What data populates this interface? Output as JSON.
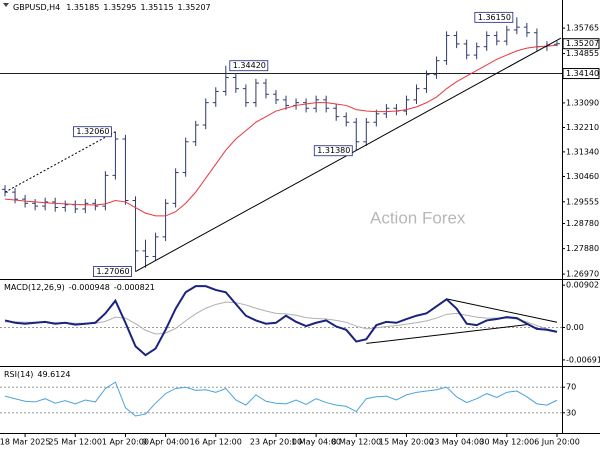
{
  "chart_data": [
    {
      "type": "ohlc",
      "title": "GBPUSD,H4",
      "watermark": "Action Forex",
      "color": "#2e3a6b",
      "categories": [
        null,
        null,
        "18 Mar 2025",
        null,
        null,
        null,
        null,
        "25 Mar 12:00",
        null,
        null,
        null,
        null,
        "1 Apr 20:00",
        null,
        null,
        null,
        "9 Apr 04:00",
        null,
        null,
        null,
        null,
        "16 Apr 12:00",
        null,
        null,
        null,
        null,
        null,
        "23 Apr 20:00",
        null,
        null,
        null,
        "1 May 04:00",
        null,
        null,
        null,
        "8 May 12:00",
        null,
        null,
        null,
        null,
        "15 May 20:00",
        null,
        null,
        null,
        null,
        "23 May 04:00",
        null,
        null,
        null,
        null,
        "30 May 12:00",
        null,
        null,
        null,
        null,
        "6 Jun 20:00"
      ],
      "open": [
        1.3,
        1.299,
        1.2965,
        1.295,
        1.294,
        1.2955,
        1.2935,
        1.2945,
        1.293,
        1.295,
        1.294,
        1.305,
        1.318,
        1.296,
        1.278,
        1.276,
        1.283,
        1.295,
        1.306,
        1.317,
        1.323,
        1.331,
        1.335,
        1.34,
        1.336,
        1.331,
        1.338,
        1.334,
        1.332,
        1.33,
        1.331,
        1.329,
        1.332,
        1.329,
        1.326,
        1.324,
        1.317,
        1.324,
        1.327,
        1.329,
        1.328,
        1.332,
        1.336,
        1.341,
        1.346,
        1.355,
        1.352,
        1.348,
        1.351,
        1.355,
        1.353,
        1.357,
        1.358,
        1.356,
        1.351,
        1.35185
      ],
      "high": [
        1.3015,
        1.3005,
        1.298,
        1.2965,
        1.297,
        1.297,
        1.296,
        1.296,
        1.2965,
        1.2965,
        1.3065,
        1.3206,
        1.3195,
        1.2975,
        1.282,
        1.2845,
        1.2965,
        1.3075,
        1.3185,
        1.3245,
        1.3325,
        1.3365,
        1.3442,
        1.3415,
        1.3375,
        1.3395,
        1.3395,
        1.3355,
        1.3335,
        1.3325,
        1.3325,
        1.3335,
        1.3335,
        1.3305,
        1.3275,
        1.3255,
        1.3255,
        1.3285,
        1.3305,
        1.3305,
        1.3335,
        1.3375,
        1.3425,
        1.3475,
        1.3565,
        1.3565,
        1.3535,
        1.3525,
        1.3565,
        1.3565,
        1.3585,
        1.3615,
        1.3595,
        1.3575,
        1.353,
        1.35295
      ],
      "low": [
        1.2975,
        1.295,
        1.2935,
        1.2925,
        1.2925,
        1.292,
        1.292,
        1.2915,
        1.2915,
        1.2925,
        1.2925,
        1.3035,
        1.2945,
        1.2706,
        1.272,
        1.2745,
        1.2815,
        1.2935,
        1.3045,
        1.3155,
        1.3215,
        1.3295,
        1.3335,
        1.3345,
        1.3295,
        1.3295,
        1.3325,
        1.3305,
        1.3285,
        1.3285,
        1.3275,
        1.3275,
        1.3275,
        1.3245,
        1.3225,
        1.3138,
        1.3155,
        1.3225,
        1.3255,
        1.3265,
        1.3265,
        1.3305,
        1.3345,
        1.3395,
        1.3445,
        1.3505,
        1.3465,
        1.3465,
        1.3495,
        1.3515,
        1.3515,
        1.3555,
        1.3545,
        1.3495,
        1.3495,
        1.35115
      ],
      "close": [
        1.299,
        1.2965,
        1.295,
        1.294,
        1.2955,
        1.2935,
        1.2945,
        1.293,
        1.295,
        1.294,
        1.305,
        1.318,
        1.296,
        1.278,
        1.276,
        1.283,
        1.295,
        1.306,
        1.317,
        1.323,
        1.331,
        1.335,
        1.34,
        1.336,
        1.331,
        1.338,
        1.334,
        1.332,
        1.33,
        1.331,
        1.329,
        1.332,
        1.329,
        1.326,
        1.324,
        1.317,
        1.324,
        1.327,
        1.329,
        1.328,
        1.332,
        1.336,
        1.341,
        1.346,
        1.355,
        1.352,
        1.348,
        1.351,
        1.355,
        1.353,
        1.357,
        1.358,
        1.356,
        1.351,
        1.3515,
        1.35207
      ],
      "overlays": [
        {
          "color": "#e8383d",
          "values": [
            1.2965,
            1.2962,
            1.2958,
            1.2955,
            1.2952,
            1.295,
            1.2948,
            1.2946,
            1.2945,
            1.2944,
            1.2948,
            1.296,
            1.2955,
            1.2935,
            1.2915,
            1.2905,
            1.2905,
            1.292,
            1.295,
            1.299,
            1.304,
            1.309,
            1.314,
            1.318,
            1.321,
            1.324,
            1.326,
            1.328,
            1.329,
            1.33,
            1.3305,
            1.331,
            1.331,
            1.3305,
            1.33,
            1.3285,
            1.328,
            1.3278,
            1.3278,
            1.328,
            1.3285,
            1.3295,
            1.331,
            1.333,
            1.336,
            1.3385,
            1.3405,
            1.3425,
            1.3445,
            1.3465,
            1.348,
            1.3495,
            1.3505,
            1.351,
            1.3512,
            1.3515
          ]
        }
      ],
      "trendlines": [
        {
          "x": [
            13,
            55.4
          ],
          "y": [
            1.2706,
            1.3541
          ],
          "color": "#000000",
          "style": "solid"
        },
        {
          "x": [
            0,
            11
          ],
          "y": [
            1.299,
            1.3206
          ],
          "color": "#000000",
          "style": "dotted"
        }
      ],
      "hline": {
        "value": 1.3414,
        "label": "1.34140"
      },
      "annotations": [
        {
          "index": 11,
          "value": 1.3206,
          "label": "1.32060"
        },
        {
          "index": 13,
          "value": 1.2706,
          "label": "1.27060"
        },
        {
          "index": 22,
          "value": 1.3442,
          "label": "1.34420"
        },
        {
          "index": 35,
          "value": 1.3138,
          "label": "1.31380"
        },
        {
          "index": 51,
          "value": 1.3615,
          "label": "1.36150"
        }
      ],
      "ylim": [
        1.2683,
        1.3677
      ],
      "yticks": [
        1.35765,
        1.34855,
        {
          "value": 1.3309,
          "label": "1.33090"
        },
        {
          "value": 1.3221,
          "label": "1.32210"
        },
        {
          "value": 1.3134,
          "label": "1.31340"
        },
        {
          "value": 1.3046,
          "label": "1.30460"
        },
        1.29555,
        {
          "value": 1.2878,
          "label": "1.28780"
        },
        {
          "value": 1.2788,
          "label": "1.27880"
        },
        {
          "value": 1.2697,
          "label": "1.26970"
        }
      ],
      "grid": false
    },
    {
      "type": "line",
      "title": "MACD(12,26,9)",
      "series": [
        {
          "color": "#1a237e",
          "width": 2,
          "values": [
            0.0015,
            0.001,
            0.0008,
            0.001,
            0.0012,
            0.0008,
            0.001,
            0.0006,
            0.0008,
            0.001,
            0.003,
            0.0057,
            0.001,
            -0.004,
            -0.0059,
            -0.0045,
            -0.0005,
            0.004,
            0.0075,
            0.0088,
            0.0088,
            0.008,
            0.0075,
            0.005,
            0.0025,
            0.0015,
            0.0008,
            0.001,
            0.0025,
            0.0012,
            0.0003,
            0.001,
            0.0015,
            0.0002,
            -0.0005,
            -0.003,
            -0.0025,
            0.0005,
            0.0012,
            0.001,
            0.0018,
            0.0025,
            0.003,
            0.0045,
            0.006,
            0.004,
            0.0008,
            0.0005,
            0.0015,
            0.0018,
            0.0022,
            0.002,
            0.0008,
            -0.0003,
            -0.0005,
            -0.000948
          ]
        },
        {
          "color": "#b0b0b0",
          "width": 1,
          "values": [
            0.0012,
            0.0012,
            0.0011,
            0.0011,
            0.0011,
            0.001,
            0.001,
            0.0009,
            0.0009,
            0.0009,
            0.0013,
            0.0022,
            0.002,
            0.0008,
            -0.0006,
            -0.0014,
            -0.0012,
            -0.0002,
            0.0014,
            0.0029,
            0.0041,
            0.0049,
            0.0054,
            0.0053,
            0.0048,
            0.0041,
            0.0035,
            0.003,
            0.0029,
            0.0026,
            0.0021,
            0.0019,
            0.0018,
            0.0015,
            0.0011,
            0.0003,
            -0.0003,
            -0.0001,
            0.0002,
            0.0004,
            0.0007,
            0.001,
            0.0014,
            0.002,
            0.0028,
            0.003,
            0.0026,
            0.0022,
            0.002,
            0.002,
            0.002,
            0.0018,
            0.0012,
            0.0004,
            -0.0003,
            -0.000821
          ]
        }
      ],
      "trendlines": [
        {
          "x": [
            36,
            52
          ],
          "y": [
            -0.0034,
            0.0006
          ],
          "color": "#000000",
          "style": "solid"
        },
        {
          "x": [
            44,
            55
          ],
          "y": [
            0.0061,
            0.0011
          ],
          "color": "#000000",
          "style": "solid"
        }
      ],
      "levels": [
        0
      ],
      "ylim": [
        -0.008,
        0.0099
      ],
      "yticks": [
        0.00902,
        {
          "value": 0,
          "label": "0.00"
        },
        -0.006915
      ]
    },
    {
      "type": "line",
      "title": "RSI(14)",
      "series": [
        {
          "color": "#4aa3df",
          "width": 1,
          "values": [
            56,
            52,
            48,
            47,
            52,
            45,
            49,
            44,
            50,
            47,
            68,
            78,
            38,
            25,
            28,
            45,
            60,
            68,
            70,
            65,
            66,
            62,
            68,
            50,
            42,
            58,
            48,
            45,
            44,
            50,
            43,
            52,
            46,
            42,
            40,
            32,
            52,
            55,
            56,
            50,
            58,
            62,
            64,
            66,
            70,
            55,
            46,
            52,
            60,
            54,
            62,
            64,
            55,
            44,
            42,
            49.6124
          ]
        }
      ],
      "levels": [
        70,
        30
      ],
      "ylim": [
        0,
        100
      ],
      "yticks": [
        70,
        30
      ]
    }
  ]
}
